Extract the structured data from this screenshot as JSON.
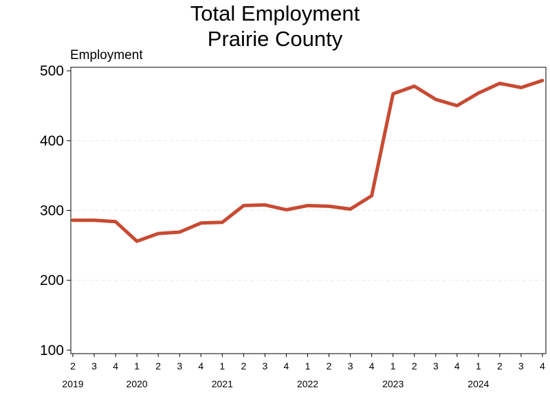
{
  "chart_data": {
    "type": "line",
    "title": [
      "Total Employment",
      "Prairie County"
    ],
    "ylabel": "Employment",
    "xlabel": "",
    "ylim": [
      95,
      505
    ],
    "yticks": [
      100,
      200,
      300,
      400,
      500
    ],
    "grid": {
      "y": true,
      "x": false
    },
    "legend": "none",
    "color": "#C84A32",
    "x": [
      {
        "quarter": "2",
        "year": "2019"
      },
      {
        "quarter": "3",
        "year": "2019"
      },
      {
        "quarter": "4",
        "year": "2019"
      },
      {
        "quarter": "1",
        "year": "2020"
      },
      {
        "quarter": "2",
        "year": "2020"
      },
      {
        "quarter": "3",
        "year": "2020"
      },
      {
        "quarter": "4",
        "year": "2020"
      },
      {
        "quarter": "1",
        "year": "2021"
      },
      {
        "quarter": "2",
        "year": "2021"
      },
      {
        "quarter": "3",
        "year": "2021"
      },
      {
        "quarter": "4",
        "year": "2021"
      },
      {
        "quarter": "1",
        "year": "2022"
      },
      {
        "quarter": "2",
        "year": "2022"
      },
      {
        "quarter": "3",
        "year": "2022"
      },
      {
        "quarter": "4",
        "year": "2022"
      },
      {
        "quarter": "1",
        "year": "2023"
      },
      {
        "quarter": "2",
        "year": "2023"
      },
      {
        "quarter": "3",
        "year": "2023"
      },
      {
        "quarter": "4",
        "year": "2023"
      },
      {
        "quarter": "1",
        "year": "2024"
      },
      {
        "quarter": "2",
        "year": "2024"
      },
      {
        "quarter": "3",
        "year": "2024"
      },
      {
        "quarter": "4",
        "year": "2024"
      }
    ],
    "years": [
      "2019",
      "2020",
      "2021",
      "2022",
      "2023",
      "2024"
    ],
    "values": [
      286,
      286,
      284,
      256,
      267,
      269,
      282,
      283,
      307,
      308,
      301,
      307,
      306,
      302,
      321,
      467,
      478,
      459,
      450,
      468,
      482,
      476,
      486
    ]
  }
}
